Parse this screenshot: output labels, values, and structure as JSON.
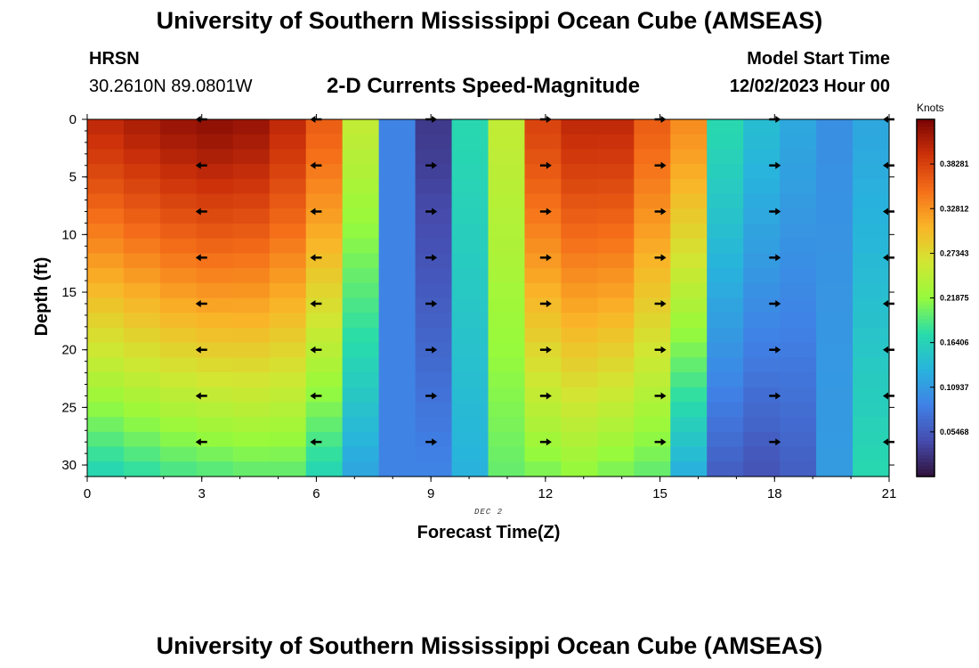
{
  "header": {
    "title": "University of Southern Mississippi Ocean Cube (AMSEAS)",
    "station": "HRSN",
    "location": "30.2610N  89.0801W",
    "subtitle": "2-D Currents Speed-Magnitude",
    "model_start_label": "Model Start Time",
    "model_start_value": "12/02/2023 Hour 00"
  },
  "footer": {
    "title": "University of Southern Mississippi Ocean Cube (AMSEAS)"
  },
  "chart_data": {
    "type": "heatmap",
    "title": "2-D Currents Speed-Magnitude",
    "xlabel": "Forecast Time(Z)",
    "ylabel": "Depth (ft)",
    "date_label": "DEC 2",
    "xlim": [
      0,
      21
    ],
    "ylim": [
      0,
      31
    ],
    "x_ticks": [
      "0",
      "3",
      "6",
      "9",
      "12",
      "15",
      "18",
      "21"
    ],
    "y_ticks": [
      "0",
      "5",
      "10",
      "15",
      "20",
      "25",
      "30"
    ],
    "colorbar": {
      "units": "Knots",
      "range": [
        0,
        0.4375
      ],
      "ticks": [
        "0.05468",
        "0.10937",
        "0.16406",
        "0.21875",
        "0.27343",
        "0.32812",
        "0.38281"
      ],
      "tick_values": [
        0.05468,
        0.10937,
        0.16406,
        0.21875,
        0.27343,
        0.32812,
        0.38281
      ]
    },
    "columns": [
      {
        "hour": 0,
        "surface": 0.4,
        "bottom": 0.17
      },
      {
        "hour": 1,
        "surface": 0.41,
        "bottom": 0.18
      },
      {
        "hour": 2,
        "surface": 0.42,
        "bottom": 0.19
      },
      {
        "hour": 3,
        "surface": 0.425,
        "bottom": 0.195
      },
      {
        "hour": 4,
        "surface": 0.42,
        "bottom": 0.2
      },
      {
        "hour": 5,
        "surface": 0.4,
        "bottom": 0.2
      },
      {
        "hour": 6,
        "surface": 0.36,
        "bottom": 0.17
      },
      {
        "hour": 7,
        "surface": 0.25,
        "bottom": 0.12
      },
      {
        "hour": 8,
        "surface": 0.09,
        "bottom": 0.09
      },
      {
        "hour": 9,
        "surface": 0.03,
        "bottom": 0.09
      },
      {
        "hour": 10,
        "surface": 0.17,
        "bottom": 0.13
      },
      {
        "hour": 11,
        "surface": 0.25,
        "bottom": 0.2
      },
      {
        "hour": 12,
        "surface": 0.38,
        "bottom": 0.21
      },
      {
        "hour": 13,
        "surface": 0.4,
        "bottom": 0.22
      },
      {
        "hour": 14,
        "surface": 0.4,
        "bottom": 0.21
      },
      {
        "hour": 15,
        "surface": 0.36,
        "bottom": 0.2
      },
      {
        "hour": 16,
        "surface": 0.33,
        "bottom": 0.13
      },
      {
        "hour": 17,
        "surface": 0.17,
        "bottom": 0.06
      },
      {
        "hour": 18,
        "surface": 0.14,
        "bottom": 0.05
      },
      {
        "hour": 19,
        "surface": 0.12,
        "bottom": 0.06
      },
      {
        "hour": 20,
        "surface": 0.1,
        "bottom": 0.11
      },
      {
        "hour": 21,
        "surface": 0.12,
        "bottom": 0.17
      }
    ],
    "arrows": {
      "hours": [
        3,
        6,
        9,
        12,
        15,
        18,
        21
      ],
      "depths": [
        0,
        4,
        8,
        12,
        16,
        20,
        24,
        28
      ],
      "directions": [
        "west",
        "west",
        "east",
        "east",
        "east",
        "east",
        "west"
      ]
    }
  }
}
